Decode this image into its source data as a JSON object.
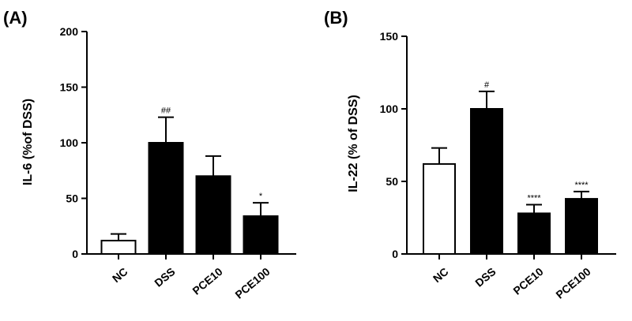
{
  "chart_data": [
    {
      "type": "bar",
      "panel_label": "(A)",
      "ylabel": "IL-6 (%of DSS)",
      "xlabel": "",
      "ylim": [
        0,
        200
      ],
      "yticks": [
        0,
        50,
        100,
        150,
        200
      ],
      "categories": [
        "NC",
        "DSS",
        "PCE10",
        "PCE100"
      ],
      "values": [
        12,
        100,
        70,
        34
      ],
      "errors": [
        6,
        23,
        18,
        12
      ],
      "bar_fills": [
        "white",
        "black",
        "black",
        "black"
      ],
      "annotations": [
        "",
        "##",
        "",
        "*"
      ],
      "grid": false
    },
    {
      "type": "bar",
      "panel_label": "(B)",
      "ylabel": "IL-22 (% of DSS)",
      "xlabel": "",
      "ylim": [
        0,
        150
      ],
      "yticks": [
        0,
        50,
        100,
        150
      ],
      "categories": [
        "NC",
        "DSS",
        "PCE10",
        "PCE100"
      ],
      "values": [
        62,
        100,
        28,
        38
      ],
      "errors": [
        11,
        12,
        6,
        5
      ],
      "bar_fills": [
        "white",
        "black",
        "black",
        "black"
      ],
      "annotations": [
        "",
        "#",
        "****",
        "****"
      ],
      "grid": false
    }
  ]
}
